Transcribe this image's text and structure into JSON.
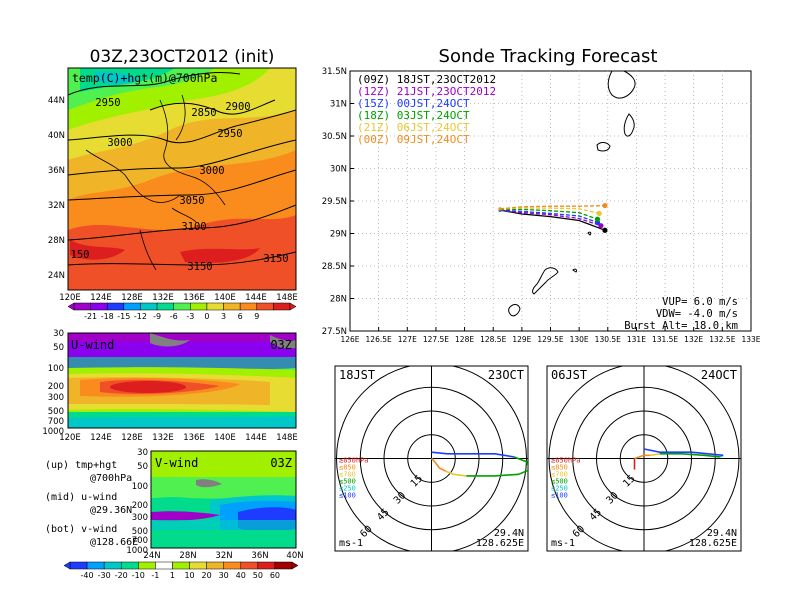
{
  "left_title": "03Z,23OCT2012 (init)",
  "right_title": "Sonde Tracking Forecast",
  "map": {
    "label": "temp(C)+hgt(m)@700hPa",
    "lat_ticks": [
      "44N",
      "40N",
      "36N",
      "32N",
      "28N",
      "24N"
    ],
    "lon_ticks": [
      "120E",
      "124E",
      "128E",
      "132E",
      "136E",
      "140E",
      "144E",
      "148E"
    ],
    "contours": [
      "2950",
      "2850",
      "2900",
      "2950",
      "3000",
      "3000",
      "3050",
      "3100",
      "3150",
      "3150",
      "150"
    ]
  },
  "temp_colorbar": {
    "labels": [
      "-21",
      "-18",
      "-15",
      "-12",
      "-9",
      "-6",
      "-3",
      "0",
      "3",
      "6",
      "9"
    ],
    "colors": [
      "#a000c8",
      "#8c00f0",
      "#1e3cff",
      "#00a0ff",
      "#00c8c8",
      "#00dc8c",
      "#50f050",
      "#a0f000",
      "#e6dc32",
      "#f0b428",
      "#fa8c1e",
      "#f05028",
      "#dc1e1e"
    ]
  },
  "uwind": {
    "label": "U-wind",
    "time": "03Z",
    "p_ticks": [
      "30",
      "50",
      "100",
      "200",
      "300",
      "500",
      "700",
      "1000"
    ],
    "x_ticks": [
      "120E",
      "124E",
      "128E",
      "132E",
      "136E",
      "140E",
      "144E",
      "148E"
    ]
  },
  "vwind": {
    "label": "V-wind",
    "time": "03Z",
    "p_ticks": [
      "30",
      "50",
      "100",
      "200",
      "300",
      "500",
      "700",
      "1000"
    ],
    "x_ticks": [
      "24N",
      "28N",
      "32N",
      "36N",
      "40N"
    ]
  },
  "notes": [
    {
      "line1": "(up) tmp+hgt",
      "line2": "@700hPa"
    },
    {
      "line1": "(mid) u-wind",
      "line2": "@29.36N"
    },
    {
      "line1": "(bot) v-wind",
      "line2": "@128.66E"
    }
  ],
  "wind_colorbar": {
    "labels": [
      "-40",
      "-30",
      "-20",
      "-10",
      "-1",
      "1",
      "10",
      "20",
      "30",
      "40",
      "50",
      "60"
    ],
    "colors": [
      "#1e3cff",
      "#00a0ff",
      "#00c8c8",
      "#00dc8c",
      "#a0f000",
      "#ffffff",
      "#a0f000",
      "#e6dc32",
      "#f0b428",
      "#fa8c1e",
      "#f05028",
      "#dc1e1e",
      "#a00000"
    ]
  },
  "chart_data": {
    "type": "line",
    "title": "Sonde Tracking Forecast",
    "xlim": [
      126,
      133
    ],
    "ylim": [
      27.5,
      31.5
    ],
    "x_ticks": [
      "126E",
      "126.5E",
      "127E",
      "127.5E",
      "128E",
      "128.5E",
      "129E",
      "129.5E",
      "130E",
      "130.5E",
      "131E",
      "131.5E",
      "132E",
      "132.5E",
      "133E"
    ],
    "y_ticks": [
      "31.5N",
      "31N",
      "30.5N",
      "30N",
      "29.5N",
      "29N",
      "28.5N",
      "28N",
      "27.5N"
    ],
    "grid": true,
    "legend": "top-left",
    "series": [
      {
        "name": "(09Z)  18JST,23OCT2012",
        "color": "#000000",
        "points": [
          [
            128.62,
            29.36
          ],
          [
            129.0,
            29.3
          ],
          [
            129.5,
            29.26
          ],
          [
            130.0,
            29.2
          ],
          [
            130.45,
            29.05
          ]
        ]
      },
      {
        "name": "(12Z)  21JST,23OCT2012",
        "color": "#9900cc",
        "points": [
          [
            128.62,
            29.36
          ],
          [
            129.0,
            29.32
          ],
          [
            129.5,
            29.29
          ],
          [
            130.0,
            29.23
          ],
          [
            130.38,
            29.12
          ]
        ]
      },
      {
        "name": "(15Z)  00JST,24OCT",
        "color": "#1e3cff",
        "points": [
          [
            128.62,
            29.36
          ],
          [
            129.0,
            29.34
          ],
          [
            129.5,
            29.31
          ],
          [
            130.0,
            29.27
          ],
          [
            130.32,
            29.17
          ]
        ]
      },
      {
        "name": "(18Z)  03JST,24OCT",
        "color": "#00a000",
        "points": [
          [
            128.62,
            29.37
          ],
          [
            129.0,
            29.37
          ],
          [
            129.5,
            29.35
          ],
          [
            130.0,
            29.32
          ],
          [
            130.32,
            29.22
          ]
        ]
      },
      {
        "name": "(21Z)  06JST,24OCT",
        "color": "#e6c832",
        "points": [
          [
            128.62,
            29.38
          ],
          [
            129.0,
            29.39
          ],
          [
            129.5,
            29.39
          ],
          [
            130.0,
            29.38
          ],
          [
            130.35,
            29.31
          ]
        ]
      },
      {
        "name": "(00Z)  09JST,24OCT",
        "color": "#f08c1e",
        "points": [
          [
            128.62,
            29.38
          ],
          [
            129.0,
            29.41
          ],
          [
            129.5,
            29.42
          ],
          [
            130.0,
            29.42
          ],
          [
            130.45,
            29.43
          ]
        ]
      }
    ],
    "params": [
      "VUP= 6.0 m/s",
      "VDW= -4.0 m/s",
      "Burst Alt= 18.0 km"
    ]
  },
  "hodographs": [
    {
      "left_label": "18JST",
      "right_label": "23OCT",
      "rings": [
        "15",
        "30",
        "45",
        "60"
      ],
      "levels": [
        "≥850hPa",
        "≤850",
        "≤700",
        "≤500",
        "≤250",
        "≤100"
      ],
      "level_colors": [
        "#dc1e1e",
        "#f08c1e",
        "#e6c832",
        "#00a000",
        "#00c8c8",
        "#1e3cff"
      ],
      "unit": "ms-1",
      "lat": "29.4N",
      "lon": "128.625E",
      "trace": [
        {
          "color": "#f08c1e",
          "points": [
            [
              0,
              0
            ],
            [
              2,
              -2
            ],
            [
              5,
              -6
            ],
            [
              9,
              -8
            ]
          ]
        },
        {
          "color": "#e6c832",
          "points": [
            [
              9,
              -8
            ],
            [
              14,
              -10
            ],
            [
              22,
              -11
            ]
          ]
        },
        {
          "color": "#00a000",
          "points": [
            [
              22,
              -11
            ],
            [
              40,
              -11
            ],
            [
              55,
              -10
            ],
            [
              62,
              -7
            ],
            [
              60,
              -2
            ],
            [
              52,
              1
            ]
          ]
        },
        {
          "color": "#1e3cff",
          "points": [
            [
              52,
              1
            ],
            [
              40,
              3
            ],
            [
              25,
              3
            ],
            [
              10,
              3
            ],
            [
              0,
              4
            ]
          ]
        }
      ]
    },
    {
      "left_label": "06JST",
      "right_label": "24OCT",
      "rings": [
        "15",
        "30",
        "45",
        "60"
      ],
      "levels": [
        "≥850hPa",
        "≤850",
        "≤700",
        "≤500",
        "≤250",
        "≤100"
      ],
      "level_colors": [
        "#dc1e1e",
        "#f08c1e",
        "#e6c832",
        "#00a000",
        "#00c8c8",
        "#1e3cff"
      ],
      "unit": "ms-1",
      "lat": "29.4N",
      "lon": "128.625E",
      "trace": [
        {
          "color": "#dc1e1e",
          "points": [
            [
              -6,
              0
            ],
            [
              -6,
              -7
            ]
          ]
        },
        {
          "color": "#f08c1e",
          "points": [
            [
              -6,
              0
            ],
            [
              0,
              2
            ],
            [
              4,
              2
            ]
          ]
        },
        {
          "color": "#e6c832",
          "points": [
            [
              4,
              2
            ],
            [
              10,
              3
            ]
          ]
        },
        {
          "color": "#00a000",
          "points": [
            [
              10,
              3
            ],
            [
              24,
              3
            ],
            [
              38,
              2
            ],
            [
              48,
              1
            ]
          ]
        },
        {
          "color": "#00c8c8",
          "points": [
            [
              48,
              1
            ],
            [
              50,
              2
            ]
          ]
        },
        {
          "color": "#1e3cff",
          "points": [
            [
              50,
              2
            ],
            [
              30,
              4
            ],
            [
              10,
              4
            ],
            [
              0,
              6
            ]
          ]
        }
      ]
    }
  ]
}
